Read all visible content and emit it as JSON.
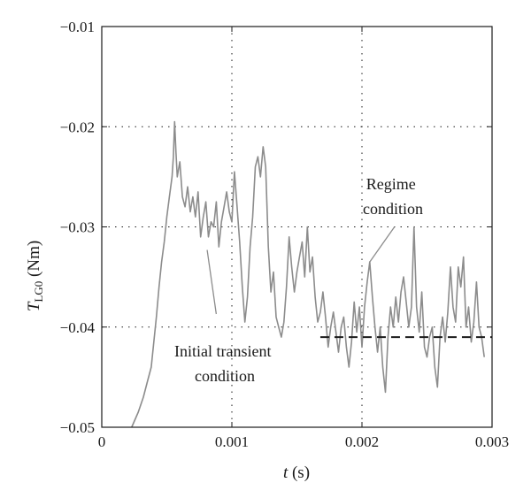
{
  "chart_data": {
    "type": "line",
    "xlabel_var": "t",
    "xlabel_unit": " (s)",
    "ylabel_var": "T",
    "ylabel_sub": "LG0",
    "ylabel_unit": " (Nm)",
    "xlim": [
      0,
      0.003
    ],
    "ylim": [
      -0.05,
      -0.01
    ],
    "x_ticks": [
      0,
      0.001,
      0.002,
      0.003
    ],
    "x_tick_labels": [
      "0",
      "0.001",
      "0.002",
      "0.003"
    ],
    "y_ticks": [
      -0.05,
      -0.04,
      -0.03,
      -0.02,
      -0.01
    ],
    "y_tick_labels": [
      "−0.05",
      "−0.04",
      "−0.03",
      "−0.02",
      "−0.01"
    ],
    "grid": "dotted",
    "series_color": "#8c8c8c",
    "reference_line": {
      "y": -0.041,
      "x_start": 0.00168,
      "x_end": 0.003,
      "style": "dashed",
      "color": "#1a1a1a"
    },
    "annotations": [
      {
        "lines": [
          "Initial transient",
          "condition"
        ],
        "pointer_from": [
          0.00088,
          -0.0387
        ],
        "pointer_to": [
          0.00081,
          -0.0323
        ]
      },
      {
        "lines": [
          "Regime",
          "condition"
        ],
        "pointer_from": [
          0.00225,
          -0.03
        ],
        "pointer_to": [
          0.00206,
          -0.0335
        ]
      }
    ],
    "series": [
      {
        "x": [
          0.00023,
          0.00028,
          0.00032,
          0.00035,
          0.00038,
          0.0004,
          0.00042,
          0.00044,
          0.00046,
          0.00048,
          0.0005,
          0.00052,
          0.00054,
          0.00055,
          0.00056,
          0.00057,
          0.00058,
          0.0006,
          0.00062,
          0.00064,
          0.00066,
          0.00068,
          0.0007,
          0.00072,
          0.00074,
          0.00076,
          0.00078,
          0.0008,
          0.00082,
          0.00084,
          0.00086,
          0.00088,
          0.0009,
          0.00092,
          0.00094,
          0.00096,
          0.00098,
          0.001,
          0.00102,
          0.00104,
          0.00106,
          0.00108,
          0.0011,
          0.00112,
          0.00114,
          0.00116,
          0.00118,
          0.0012,
          0.00122,
          0.00124,
          0.00126,
          0.00128,
          0.0013,
          0.00132,
          0.00134,
          0.00136,
          0.00138,
          0.0014,
          0.00142,
          0.00144,
          0.00146,
          0.00148,
          0.0015,
          0.00152,
          0.00154,
          0.00156,
          0.00158,
          0.0016,
          0.00162,
          0.00164,
          0.00166,
          0.00168,
          0.0017,
          0.00172,
          0.00174,
          0.00176,
          0.00178,
          0.0018,
          0.00182,
          0.00184,
          0.00186,
          0.00188,
          0.0019,
          0.00192,
          0.00194,
          0.00196,
          0.00198,
          0.002,
          0.00202,
          0.00204,
          0.00206,
          0.00208,
          0.0021,
          0.00212,
          0.00214,
          0.00216,
          0.00218,
          0.0022,
          0.00222,
          0.00224,
          0.00226,
          0.00228,
          0.0023,
          0.00232,
          0.00234,
          0.00236,
          0.00238,
          0.0024,
          0.00242,
          0.00244,
          0.00246,
          0.00248,
          0.0025,
          0.00252,
          0.00254,
          0.00256,
          0.00258,
          0.0026,
          0.00262,
          0.00264,
          0.00266,
          0.00268,
          0.0027,
          0.00272,
          0.00274,
          0.00276,
          0.00278,
          0.0028,
          0.00282,
          0.00284,
          0.00286,
          0.00288,
          0.0029,
          0.00292,
          0.00294
        ],
        "y": [
          -0.05,
          -0.0485,
          -0.047,
          -0.0455,
          -0.044,
          -0.0415,
          -0.039,
          -0.036,
          -0.0335,
          -0.0315,
          -0.029,
          -0.027,
          -0.025,
          -0.023,
          -0.0195,
          -0.0225,
          -0.025,
          -0.0235,
          -0.027,
          -0.028,
          -0.026,
          -0.0285,
          -0.027,
          -0.029,
          -0.0265,
          -0.031,
          -0.029,
          -0.0275,
          -0.031,
          -0.0295,
          -0.03,
          -0.0275,
          -0.032,
          -0.0295,
          -0.028,
          -0.0265,
          -0.0285,
          -0.0295,
          -0.0245,
          -0.028,
          -0.0315,
          -0.036,
          -0.0395,
          -0.037,
          -0.032,
          -0.029,
          -0.024,
          -0.023,
          -0.025,
          -0.022,
          -0.024,
          -0.032,
          -0.0365,
          -0.0345,
          -0.039,
          -0.04,
          -0.041,
          -0.0395,
          -0.036,
          -0.031,
          -0.034,
          -0.0365,
          -0.0345,
          -0.033,
          -0.0315,
          -0.035,
          -0.03,
          -0.0345,
          -0.033,
          -0.037,
          -0.0395,
          -0.0385,
          -0.0365,
          -0.039,
          -0.042,
          -0.04,
          -0.0385,
          -0.0405,
          -0.0425,
          -0.04,
          -0.039,
          -0.042,
          -0.044,
          -0.0415,
          -0.0375,
          -0.0405,
          -0.038,
          -0.042,
          -0.038,
          -0.0355,
          -0.0335,
          -0.037,
          -0.04,
          -0.0425,
          -0.04,
          -0.044,
          -0.0465,
          -0.041,
          -0.038,
          -0.04,
          -0.037,
          -0.0395,
          -0.0365,
          -0.035,
          -0.0375,
          -0.04,
          -0.038,
          -0.03,
          -0.038,
          -0.0405,
          -0.0365,
          -0.042,
          -0.043,
          -0.041,
          -0.04,
          -0.044,
          -0.046,
          -0.041,
          -0.039,
          -0.0415,
          -0.0385,
          -0.034,
          -0.038,
          -0.0395,
          -0.034,
          -0.036,
          -0.033,
          -0.04,
          -0.038,
          -0.0415,
          -0.0395,
          -0.0355,
          -0.04,
          -0.041,
          -0.043
        ]
      }
    ]
  }
}
